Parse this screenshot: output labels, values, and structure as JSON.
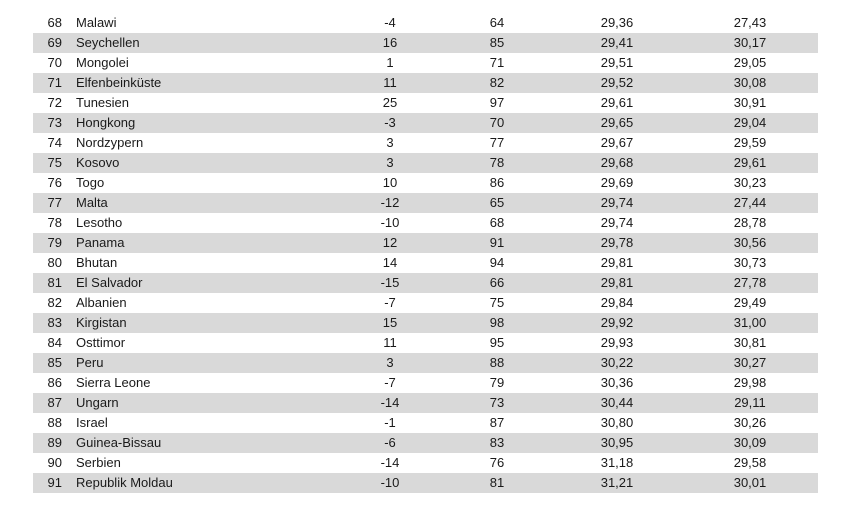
{
  "table": {
    "row_shading_color": "#d9d9d9",
    "rows": [
      [
        "68",
        "Malawi",
        "-4",
        "64",
        "29,36",
        "27,43"
      ],
      [
        "69",
        "Seychellen",
        "16",
        "85",
        "29,41",
        "30,17"
      ],
      [
        "70",
        "Mongolei",
        "1",
        "71",
        "29,51",
        "29,05"
      ],
      [
        "71",
        "Elfenbeinküste",
        "11",
        "82",
        "29,52",
        "30,08"
      ],
      [
        "72",
        "Tunesien",
        "25",
        "97",
        "29,61",
        "30,91"
      ],
      [
        "73",
        "Hongkong",
        "-3",
        "70",
        "29,65",
        "29,04"
      ],
      [
        "74",
        "Nordzypern",
        "3",
        "77",
        "29,67",
        "29,59"
      ],
      [
        "75",
        "Kosovo",
        "3",
        "78",
        "29,68",
        "29,61"
      ],
      [
        "76",
        "Togo",
        "10",
        "86",
        "29,69",
        "30,23"
      ],
      [
        "77",
        "Malta",
        "-12",
        "65",
        "29,74",
        "27,44"
      ],
      [
        "78",
        "Lesotho",
        "-10",
        "68",
        "29,74",
        "28,78"
      ],
      [
        "79",
        "Panama",
        "12",
        "91",
        "29,78",
        "30,56"
      ],
      [
        "80",
        "Bhutan",
        "14",
        "94",
        "29,81",
        "30,73"
      ],
      [
        "81",
        "El Salvador",
        "-15",
        "66",
        "29,81",
        "27,78"
      ],
      [
        "82",
        "Albanien",
        "-7",
        "75",
        "29,84",
        "29,49"
      ],
      [
        "83",
        "Kirgistan",
        "15",
        "98",
        "29,92",
        "31,00"
      ],
      [
        "84",
        "Osttimor",
        "11",
        "95",
        "29,93",
        "30,81"
      ],
      [
        "85",
        "Peru",
        "3",
        "88",
        "30,22",
        "30,27"
      ],
      [
        "86",
        "Sierra Leone",
        "-7",
        "79",
        "30,36",
        "29,98"
      ],
      [
        "87",
        "Ungarn",
        "-14",
        "73",
        "30,44",
        "29,11"
      ],
      [
        "88",
        "Israel",
        "-1",
        "87",
        "30,80",
        "30,26"
      ],
      [
        "89",
        "Guinea-Bissau",
        "-6",
        "83",
        "30,95",
        "30,09"
      ],
      [
        "90",
        "Serbien",
        "-14",
        "76",
        "31,18",
        "29,58"
      ],
      [
        "91",
        "Republik Moldau",
        "-10",
        "81",
        "31,21",
        "30,01"
      ]
    ]
  }
}
